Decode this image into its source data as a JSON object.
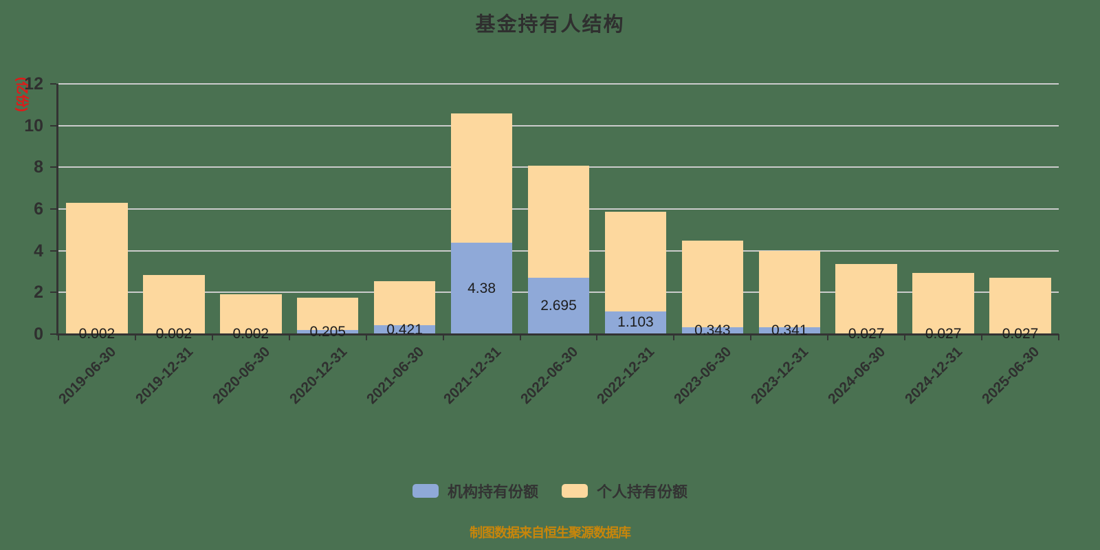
{
  "title": "基金持有人结构",
  "footer": "制图数据来自恒生聚源数据库",
  "colors": {
    "background": "#4a7151",
    "institutional": "#8fa9d8",
    "individual": "#fdd89e",
    "grid": "#cccccc",
    "axis": "#333333",
    "y_name": "#e21818",
    "footer": "#c8860b"
  },
  "chart_data": {
    "type": "bar",
    "stacked": true,
    "title": "基金持有人结构",
    "xlabel": "",
    "ylabel": "(亿份)",
    "ylim": [
      0,
      12
    ],
    "ytick_step": 2,
    "grid": true,
    "legend_position": "bottom",
    "categories": [
      "2019-06-30",
      "2019-12-31",
      "2020-06-30",
      "2020-12-31",
      "2021-06-30",
      "2021-12-31",
      "2022-06-30",
      "2022-12-31",
      "2023-06-30",
      "2023-12-31",
      "2024-06-30",
      "2024-12-31",
      "2025-06-30"
    ],
    "series": [
      {
        "name": "机构持有份额",
        "color": "#8fa9d8",
        "values": [
          0.002,
          0.002,
          0.002,
          0.205,
          0.421,
          4.38,
          2.695,
          1.103,
          0.343,
          0.341,
          0.027,
          0.027,
          0.027
        ],
        "labels": [
          "0.002",
          "0.002",
          "0.002",
          "0.205",
          "0.421",
          "4.38",
          "2.695",
          "1.103",
          "0.343",
          "0.341",
          "0.027",
          "0.027",
          "0.027"
        ]
      },
      {
        "name": "个人持有份额",
        "color": "#fdd89e",
        "values": [
          6.298,
          2.848,
          1.898,
          1.535,
          2.129,
          6.2,
          5.385,
          4.777,
          4.157,
          3.659,
          3.323,
          2.923,
          2.673
        ]
      }
    ],
    "totals": [
      6.3,
      2.85,
      1.9,
      1.74,
      2.55,
      10.58,
      8.08,
      5.88,
      4.5,
      4.0,
      3.35,
      2.95,
      2.7
    ]
  }
}
